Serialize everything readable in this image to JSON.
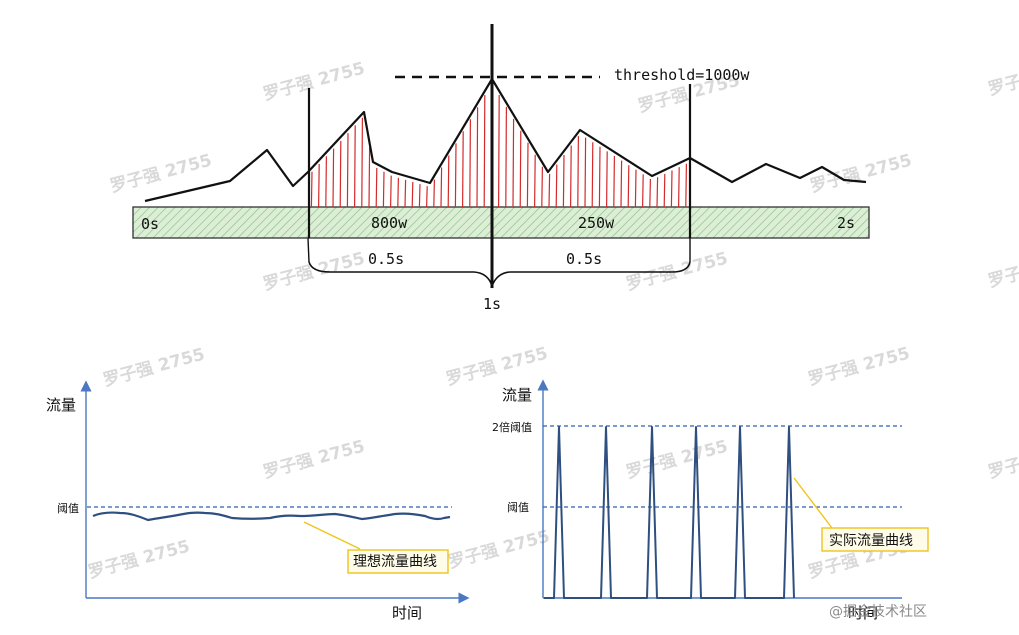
{
  "watermark": "罗子强 2755",
  "top": {
    "threshold_label": "threshold=1000w",
    "bar_labels": [
      "0s",
      "800w",
      "250w",
      "2s"
    ],
    "half_labels": [
      "0.5s",
      "0.5s"
    ],
    "center_label": "1s"
  },
  "left_chart": {
    "ylabel": "流量",
    "xlabel": "时间",
    "threshold_label": "阈值",
    "callout": "理想流量曲线"
  },
  "right_chart": {
    "ylabel": "流量",
    "xlabel": "时间",
    "double_threshold_label": "2倍阈值",
    "threshold_label": "阈值",
    "callout": "实际流量曲线"
  },
  "footer": "@掘金技术社区",
  "colors": {
    "window_fill": "#dcefd6",
    "window_hatch": "#8fc08a",
    "red_lines": "#d42a2a",
    "axis": "#4a78c2",
    "curve": "#2e4f80",
    "dashed": "#2f5fb0",
    "callout_border": "#f0c419",
    "callout_fill": "#fffbe9"
  }
}
